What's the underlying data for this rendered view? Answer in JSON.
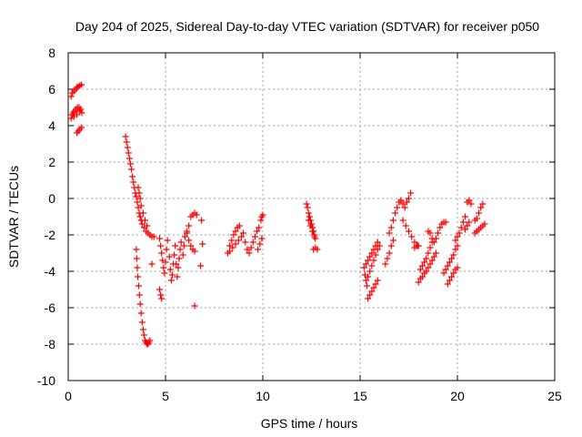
{
  "chart_data": {
    "type": "scatter",
    "title": "Day 204 of 2025, Sidereal Day-to-day VTEC variation (SDTVAR) for receiver p050",
    "xlabel": "GPS time / hours",
    "ylabel": "SDTVAR / TECUs",
    "xlim": [
      0,
      25
    ],
    "ylim": [
      -10,
      8
    ],
    "xticks": [
      "0",
      "5",
      "10",
      "15",
      "20",
      "25"
    ],
    "yticks": [
      "-10",
      "-8",
      "-6",
      "-4",
      "-2",
      "0",
      "2",
      "4",
      "6",
      "8"
    ],
    "grid": true,
    "legend": "none",
    "marker": "plus",
    "color": "#ff0000",
    "series": [
      {
        "points": [
          [
            0.15,
            5.6
          ],
          [
            0.22,
            5.8
          ],
          [
            0.3,
            5.9
          ],
          [
            0.38,
            6.0
          ],
          [
            0.45,
            6.1
          ],
          [
            0.52,
            6.15
          ],
          [
            0.6,
            6.2
          ],
          [
            0.68,
            6.25
          ],
          [
            0.15,
            4.4
          ],
          [
            0.2,
            4.6
          ],
          [
            0.26,
            4.7
          ],
          [
            0.32,
            4.8
          ],
          [
            0.4,
            4.9
          ],
          [
            0.48,
            5.0
          ],
          [
            0.56,
            5.0
          ],
          [
            0.64,
            4.9
          ],
          [
            0.7,
            4.7
          ],
          [
            0.3,
            4.5
          ],
          [
            0.45,
            4.6
          ],
          [
            0.6,
            4.8
          ],
          [
            0.45,
            3.6
          ],
          [
            0.52,
            3.7
          ],
          [
            0.6,
            3.8
          ],
          [
            0.68,
            3.9
          ],
          [
            2.95,
            3.4
          ],
          [
            3.0,
            3.1
          ],
          [
            3.05,
            2.8
          ],
          [
            3.1,
            2.5
          ],
          [
            3.15,
            2.2
          ],
          [
            3.2,
            1.9
          ],
          [
            3.25,
            1.6
          ],
          [
            3.3,
            1.2
          ],
          [
            3.35,
            0.9
          ],
          [
            3.4,
            0.6
          ],
          [
            3.45,
            0.3
          ],
          [
            3.5,
            0.1
          ],
          [
            3.55,
            -0.2
          ],
          [
            3.6,
            -0.5
          ],
          [
            3.65,
            -0.8
          ],
          [
            3.7,
            -1.0
          ],
          [
            3.75,
            -1.2
          ],
          [
            3.8,
            -1.4
          ],
          [
            3.9,
            -1.6
          ],
          [
            4.0,
            -1.8
          ],
          [
            4.1,
            -1.9
          ],
          [
            4.2,
            -2.0
          ],
          [
            4.3,
            -2.1
          ],
          [
            4.4,
            -2.1
          ],
          [
            3.6,
            0.6
          ],
          [
            3.65,
            0.3
          ],
          [
            3.7,
            0.0
          ],
          [
            3.75,
            -0.4
          ],
          [
            3.85,
            -0.8
          ],
          [
            3.95,
            -1.2
          ],
          [
            4.05,
            -1.5
          ],
          [
            3.5,
            -2.8
          ],
          [
            3.52,
            -3.3
          ],
          [
            3.55,
            -3.8
          ],
          [
            3.58,
            -4.3
          ],
          [
            3.62,
            -4.8
          ],
          [
            3.66,
            -5.3
          ],
          [
            3.7,
            -5.8
          ],
          [
            3.75,
            -6.3
          ],
          [
            3.8,
            -6.8
          ],
          [
            3.85,
            -7.2
          ],
          [
            3.9,
            -7.5
          ],
          [
            3.95,
            -7.8
          ],
          [
            4.0,
            -7.9
          ],
          [
            4.05,
            -8.0
          ],
          [
            4.1,
            -8.0
          ],
          [
            4.15,
            -7.9
          ],
          [
            4.2,
            -7.8
          ],
          [
            4.3,
            -3.6
          ],
          [
            4.7,
            -5.0
          ],
          [
            4.75,
            -5.3
          ],
          [
            4.8,
            -5.5
          ],
          [
            4.7,
            -2.2
          ],
          [
            4.75,
            -2.6
          ],
          [
            4.8,
            -3.0
          ],
          [
            4.85,
            -3.4
          ],
          [
            4.9,
            -3.8
          ],
          [
            4.95,
            -4.1
          ],
          [
            5.0,
            -3.5
          ],
          [
            5.05,
            -2.8
          ],
          [
            5.1,
            -2.3
          ],
          [
            5.2,
            -3.2
          ],
          [
            5.25,
            -3.9
          ],
          [
            5.3,
            -4.5
          ],
          [
            5.35,
            -4.2
          ],
          [
            5.4,
            -3.6
          ],
          [
            5.45,
            -3.1
          ],
          [
            5.5,
            -2.6
          ],
          [
            5.55,
            -3.6
          ],
          [
            5.6,
            -4.3
          ],
          [
            5.65,
            -3.8
          ],
          [
            5.7,
            -3.3
          ],
          [
            5.75,
            -2.8
          ],
          [
            5.8,
            -2.4
          ],
          [
            5.9,
            -3.1
          ],
          [
            5.95,
            -2.6
          ],
          [
            6.0,
            -2.1
          ],
          [
            6.1,
            -1.8
          ],
          [
            6.2,
            -1.5
          ],
          [
            6.1,
            -1.9
          ],
          [
            6.2,
            -2.3
          ],
          [
            6.3,
            -2.6
          ],
          [
            6.4,
            -2.8
          ],
          [
            6.5,
            -2.9
          ],
          [
            6.3,
            -1.0
          ],
          [
            6.4,
            -0.9
          ],
          [
            6.5,
            -0.8
          ],
          [
            6.6,
            -0.9
          ],
          [
            6.5,
            -5.9
          ],
          [
            6.85,
            -1.2
          ],
          [
            6.8,
            -3.7
          ],
          [
            6.9,
            -2.5
          ],
          [
            8.2,
            -3.0
          ],
          [
            8.3,
            -2.6
          ],
          [
            8.4,
            -2.3
          ],
          [
            8.5,
            -2.0
          ],
          [
            8.6,
            -1.8
          ],
          [
            8.7,
            -1.6
          ],
          [
            8.8,
            -1.5
          ],
          [
            8.3,
            -2.9
          ],
          [
            8.45,
            -2.7
          ],
          [
            8.6,
            -2.5
          ],
          [
            8.75,
            -2.3
          ],
          [
            8.9,
            -2.1
          ],
          [
            9.0,
            -1.9
          ],
          [
            9.1,
            -2.4
          ],
          [
            9.2,
            -2.8
          ],
          [
            9.3,
            -3.0
          ],
          [
            9.4,
            -2.7
          ],
          [
            9.5,
            -2.4
          ],
          [
            9.6,
            -2.1
          ],
          [
            9.7,
            -1.8
          ],
          [
            9.8,
            -1.6
          ],
          [
            9.9,
            -1.2
          ],
          [
            9.95,
            -1.0
          ],
          [
            10.0,
            -0.9
          ],
          [
            9.75,
            -2.8
          ],
          [
            9.85,
            -2.5
          ],
          [
            9.95,
            -2.2
          ],
          [
            12.25,
            -0.3
          ],
          [
            12.3,
            -0.5
          ],
          [
            12.35,
            -0.8
          ],
          [
            12.4,
            -1.0
          ],
          [
            12.45,
            -1.2
          ],
          [
            12.5,
            -1.4
          ],
          [
            12.55,
            -1.6
          ],
          [
            12.6,
            -1.8
          ],
          [
            12.65,
            -2.0
          ],
          [
            12.7,
            -2.2
          ],
          [
            12.35,
            -1.2
          ],
          [
            12.45,
            -1.5
          ],
          [
            12.55,
            -1.8
          ],
          [
            12.65,
            -2.1
          ],
          [
            12.6,
            -2.8
          ],
          [
            12.7,
            -2.7
          ],
          [
            12.8,
            -2.8
          ],
          [
            15.2,
            -3.8
          ],
          [
            15.25,
            -4.2
          ],
          [
            15.3,
            -4.5
          ],
          [
            15.35,
            -4.8
          ],
          [
            15.3,
            -3.6
          ],
          [
            15.4,
            -3.4
          ],
          [
            15.5,
            -3.2
          ],
          [
            15.6,
            -3.0
          ],
          [
            15.7,
            -2.8
          ],
          [
            15.8,
            -2.6
          ],
          [
            15.9,
            -2.4
          ],
          [
            16.0,
            -2.6
          ],
          [
            15.4,
            -4.3
          ],
          [
            15.5,
            -4.0
          ],
          [
            15.6,
            -3.7
          ],
          [
            15.7,
            -3.4
          ],
          [
            15.8,
            -3.1
          ],
          [
            15.9,
            -2.8
          ],
          [
            15.4,
            -5.5
          ],
          [
            15.5,
            -5.3
          ],
          [
            15.6,
            -5.1
          ],
          [
            15.7,
            -4.9
          ],
          [
            15.8,
            -4.7
          ],
          [
            15.9,
            -4.5
          ],
          [
            16.3,
            -3.6
          ],
          [
            16.4,
            -3.3
          ],
          [
            16.5,
            -3.0
          ],
          [
            16.6,
            -2.6
          ],
          [
            16.7,
            -2.3
          ],
          [
            16.5,
            -1.9
          ],
          [
            16.6,
            -1.6
          ],
          [
            16.7,
            -1.2
          ],
          [
            16.8,
            -0.8
          ],
          [
            16.9,
            -0.5
          ],
          [
            17.0,
            -0.2
          ],
          [
            17.1,
            -0.1
          ],
          [
            17.2,
            -0.3
          ],
          [
            17.3,
            -0.5
          ],
          [
            17.4,
            -0.2
          ],
          [
            17.5,
            0.0
          ],
          [
            17.6,
            0.3
          ],
          [
            17.8,
            -2.7
          ],
          [
            17.9,
            -2.6
          ],
          [
            18.0,
            -2.6
          ],
          [
            17.2,
            -1.2
          ],
          [
            17.35,
            -1.5
          ],
          [
            17.5,
            -1.8
          ],
          [
            17.65,
            -2.1
          ],
          [
            17.8,
            -2.4
          ],
          [
            17.95,
            -2.6
          ],
          [
            18.5,
            -1.8
          ],
          [
            18.6,
            -1.9
          ],
          [
            18.7,
            -2.2
          ],
          [
            18.8,
            -2.4
          ],
          [
            18.9,
            -2.2
          ],
          [
            19.0,
            -1.9
          ],
          [
            19.1,
            -1.6
          ],
          [
            19.2,
            -1.4
          ],
          [
            19.3,
            -1.3
          ],
          [
            19.4,
            -1.3
          ],
          [
            18.0,
            -4.6
          ],
          [
            18.1,
            -4.4
          ],
          [
            18.2,
            -4.3
          ],
          [
            18.3,
            -4.1
          ],
          [
            18.4,
            -4.0
          ],
          [
            18.5,
            -3.8
          ],
          [
            18.6,
            -3.6
          ],
          [
            18.7,
            -3.4
          ],
          [
            18.8,
            -3.2
          ],
          [
            18.9,
            -3.0
          ],
          [
            18.1,
            -3.9
          ],
          [
            18.2,
            -3.7
          ],
          [
            18.3,
            -3.5
          ],
          [
            18.4,
            -3.3
          ],
          [
            18.5,
            -3.0
          ],
          [
            18.6,
            -2.7
          ],
          [
            18.7,
            -2.4
          ],
          [
            19.3,
            -4.1
          ],
          [
            19.4,
            -3.9
          ],
          [
            19.5,
            -3.7
          ],
          [
            19.6,
            -3.5
          ],
          [
            19.7,
            -3.3
          ],
          [
            19.8,
            -3.1
          ],
          [
            19.9,
            -2.8
          ],
          [
            20.0,
            -2.6
          ],
          [
            19.5,
            -4.7
          ],
          [
            19.6,
            -4.5
          ],
          [
            19.7,
            -4.3
          ],
          [
            19.8,
            -4.1
          ],
          [
            19.9,
            -3.9
          ],
          [
            20.0,
            -3.8
          ],
          [
            19.9,
            -2.3
          ],
          [
            20.0,
            -2.1
          ],
          [
            20.1,
            -1.9
          ],
          [
            20.2,
            -1.6
          ],
          [
            20.3,
            -1.3
          ],
          [
            20.4,
            -1.0
          ],
          [
            20.4,
            -1.7
          ],
          [
            20.5,
            -1.5
          ],
          [
            20.6,
            -1.3
          ],
          [
            20.5,
            -0.2
          ],
          [
            20.6,
            -0.1
          ],
          [
            20.7,
            -0.3
          ],
          [
            20.9,
            -1.2
          ],
          [
            21.0,
            -1.1
          ],
          [
            21.1,
            -0.8
          ],
          [
            21.2,
            -0.5
          ],
          [
            21.3,
            -0.3
          ],
          [
            20.9,
            -1.9
          ],
          [
            21.0,
            -1.8
          ],
          [
            21.1,
            -1.7
          ],
          [
            21.2,
            -1.6
          ],
          [
            21.3,
            -1.5
          ],
          [
            21.4,
            -1.4
          ]
        ]
      }
    ]
  }
}
